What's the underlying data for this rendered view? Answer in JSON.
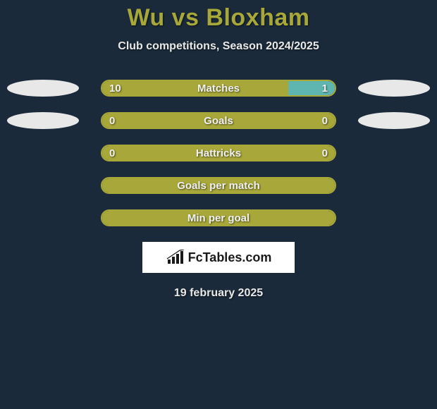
{
  "header": {
    "title": "Wu vs Bloxham",
    "subtitle": "Club competitions, Season 2024/2025"
  },
  "colors": {
    "background": "#1a2a3a",
    "accent_left": "#a8a83a",
    "accent_right": "#5fb5b0",
    "text_light": "#e8e8e8",
    "title_color": "#a8a83a",
    "ellipse": "#e8e8e8"
  },
  "stats": [
    {
      "label": "Matches",
      "left_value": "10",
      "right_value": "1",
      "left_pct": 80,
      "right_pct": 20,
      "show_left_ellipse": true,
      "show_right_ellipse": true,
      "show_values": true
    },
    {
      "label": "Goals",
      "left_value": "0",
      "right_value": "0",
      "left_pct": 100,
      "right_pct": 0,
      "show_left_ellipse": true,
      "show_right_ellipse": true,
      "show_values": true
    },
    {
      "label": "Hattricks",
      "left_value": "0",
      "right_value": "0",
      "left_pct": 100,
      "right_pct": 0,
      "show_left_ellipse": false,
      "show_right_ellipse": false,
      "show_values": true
    },
    {
      "label": "Goals per match",
      "left_value": "",
      "right_value": "",
      "left_pct": 100,
      "right_pct": 0,
      "show_left_ellipse": false,
      "show_right_ellipse": false,
      "show_values": false
    },
    {
      "label": "Min per goal",
      "left_value": "",
      "right_value": "",
      "left_pct": 100,
      "right_pct": 0,
      "show_left_ellipse": false,
      "show_right_ellipse": false,
      "show_values": false
    }
  ],
  "branding": {
    "site_name": "FcTables.com"
  },
  "footer": {
    "date": "19 february 2025"
  }
}
